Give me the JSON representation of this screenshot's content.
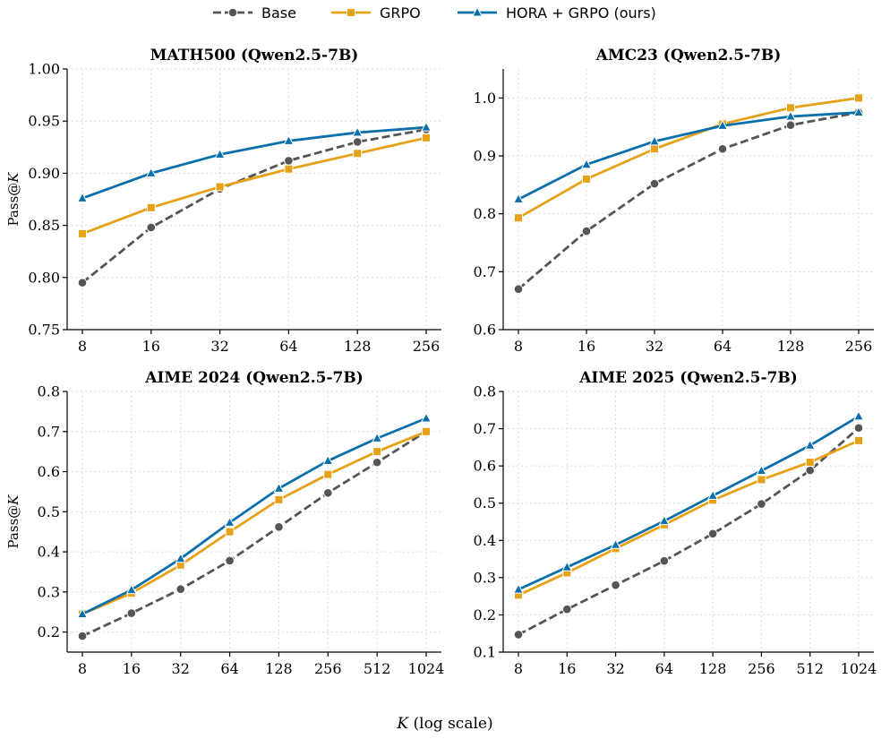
{
  "colors": {
    "base": "#555555",
    "grpo": "#E6A117",
    "hora": "#0A6FAA"
  },
  "legend": [
    {
      "name": "Base",
      "color": "#555555",
      "marker": "circle",
      "dash": true
    },
    {
      "name": "GRPO",
      "color": "#E6A117",
      "marker": "square",
      "dash": false
    },
    {
      "name": "HORA + GRPO (ours)",
      "color": "#0A6FAA",
      "marker": "triangle",
      "dash": false
    }
  ],
  "xlabel_prefix": "K",
  "xlabel_suffix": " (log scale)",
  "ylabel_prefix": "Pass@",
  "ylabel_suffix": "K",
  "chart_data": [
    {
      "type": "line",
      "title": "MATH500 (Qwen2.5-7B)",
      "xscale": "log2",
      "x": [
        8,
        16,
        32,
        64,
        128,
        256
      ],
      "xticks": [
        "8",
        "16",
        "32",
        "64",
        "128",
        "256"
      ],
      "ylim": [
        0.75,
        1.0
      ],
      "yticks": [
        "0.75",
        "0.80",
        "0.85",
        "0.90",
        "0.95",
        "1.00"
      ],
      "ytick_values": [
        0.75,
        0.8,
        0.85,
        0.9,
        0.95,
        1.0
      ],
      "show_ylabel": true,
      "series": [
        {
          "name": "Base",
          "values": [
            0.795,
            0.848,
            0.885,
            0.912,
            0.93,
            0.942
          ]
        },
        {
          "name": "GRPO",
          "values": [
            0.842,
            0.867,
            0.887,
            0.904,
            0.919,
            0.934
          ]
        },
        {
          "name": "HORA + GRPO (ours)",
          "values": [
            0.876,
            0.9,
            0.918,
            0.931,
            0.939,
            0.944
          ]
        }
      ]
    },
    {
      "type": "line",
      "title": "AMC23 (Qwen2.5-7B)",
      "xscale": "log2",
      "x": [
        8,
        16,
        32,
        64,
        128,
        256
      ],
      "xticks": [
        "8",
        "16",
        "32",
        "64",
        "128",
        "256"
      ],
      "ylim": [
        0.6,
        1.05
      ],
      "yticks": [
        "0.6",
        "0.7",
        "0.8",
        "0.9",
        "1.0"
      ],
      "ytick_values": [
        0.6,
        0.7,
        0.8,
        0.9,
        1.0
      ],
      "show_ylabel": false,
      "series": [
        {
          "name": "Base",
          "values": [
            0.67,
            0.77,
            0.852,
            0.912,
            0.953,
            0.975
          ]
        },
        {
          "name": "GRPO",
          "values": [
            0.793,
            0.86,
            0.912,
            0.955,
            0.983,
            1.0
          ]
        },
        {
          "name": "HORA + GRPO (ours)",
          "values": [
            0.825,
            0.885,
            0.925,
            0.952,
            0.968,
            0.975
          ]
        }
      ]
    },
    {
      "type": "line",
      "title": "AIME 2024 (Qwen2.5-7B)",
      "xscale": "log2",
      "x": [
        8,
        16,
        32,
        64,
        128,
        256,
        512,
        1024
      ],
      "xticks": [
        "8",
        "16",
        "32",
        "64",
        "128",
        "256",
        "512",
        "1024"
      ],
      "ylim": [
        0.15,
        0.8
      ],
      "yticks": [
        "0.2",
        "0.3",
        "0.4",
        "0.5",
        "0.6",
        "0.7",
        "0.8"
      ],
      "ytick_values": [
        0.2,
        0.3,
        0.4,
        0.5,
        0.6,
        0.7,
        0.8
      ],
      "show_ylabel": true,
      "series": [
        {
          "name": "Base",
          "values": [
            0.19,
            0.247,
            0.307,
            0.378,
            0.462,
            0.547,
            0.623,
            0.7
          ]
        },
        {
          "name": "GRPO",
          "values": [
            0.245,
            0.297,
            0.367,
            0.45,
            0.53,
            0.593,
            0.65,
            0.7
          ]
        },
        {
          "name": "HORA + GRPO (ours)",
          "values": [
            0.245,
            0.305,
            0.383,
            0.473,
            0.558,
            0.627,
            0.683,
            0.733
          ]
        }
      ]
    },
    {
      "type": "line",
      "title": "AIME 2025 (Qwen2.5-7B)",
      "xscale": "log2",
      "x": [
        8,
        16,
        32,
        64,
        128,
        256,
        512,
        1024
      ],
      "xticks": [
        "8",
        "16",
        "32",
        "64",
        "128",
        "256",
        "512",
        "1024"
      ],
      "ylim": [
        0.1,
        0.8
      ],
      "yticks": [
        "0.1",
        "0.2",
        "0.3",
        "0.4",
        "0.5",
        "0.6",
        "0.7",
        "0.8"
      ],
      "ytick_values": [
        0.1,
        0.2,
        0.3,
        0.4,
        0.5,
        0.6,
        0.7,
        0.8
      ],
      "show_ylabel": false,
      "series": [
        {
          "name": "Base",
          "values": [
            0.147,
            0.215,
            0.28,
            0.345,
            0.418,
            0.498,
            0.588,
            0.702
          ]
        },
        {
          "name": "GRPO",
          "values": [
            0.253,
            0.313,
            0.378,
            0.442,
            0.508,
            0.563,
            0.61,
            0.668
          ]
        },
        {
          "name": "HORA + GRPO (ours)",
          "values": [
            0.268,
            0.328,
            0.388,
            0.452,
            0.52,
            0.587,
            0.655,
            0.733
          ]
        }
      ]
    }
  ]
}
